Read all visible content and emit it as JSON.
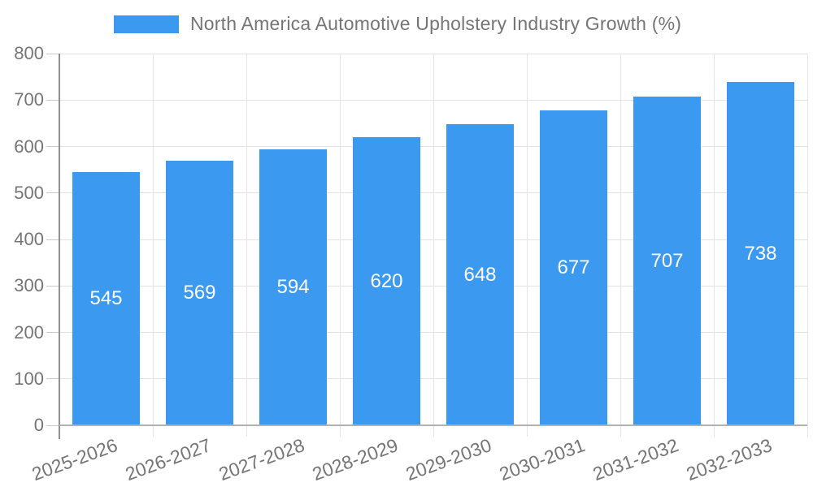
{
  "chart_data": {
    "type": "bar",
    "title": "",
    "legend": "North America Automotive Upholstery Industry Growth (%)",
    "legend_position": "top-center",
    "categories": [
      "2025-2026",
      "2026-2027",
      "2027-2028",
      "2028-2029",
      "2029-2030",
      "2030-2031",
      "2031-2032",
      "2032-2033"
    ],
    "values": [
      545,
      569,
      594,
      620,
      648,
      677,
      707,
      738
    ],
    "bar_value_labels": [
      "545",
      "569",
      "594",
      "620",
      "648",
      "677",
      "707",
      "738"
    ],
    "xlabel": "",
    "ylabel": "",
    "ylim": [
      0,
      800
    ],
    "yticks": [
      0,
      100,
      200,
      300,
      400,
      500,
      600,
      700,
      800
    ],
    "grid": true,
    "x_label_rotation_deg": -20,
    "colors": {
      "bar": "#3B9AF0",
      "bar_label_text": "#ffffff",
      "axis_text": "#757575",
      "legend_text": "#757575",
      "gridline": "#e2e2e2",
      "axis_line_left": "#8f8f8f",
      "axis_line_bottom": "#b1b1b1",
      "background": "#ffffff"
    }
  }
}
